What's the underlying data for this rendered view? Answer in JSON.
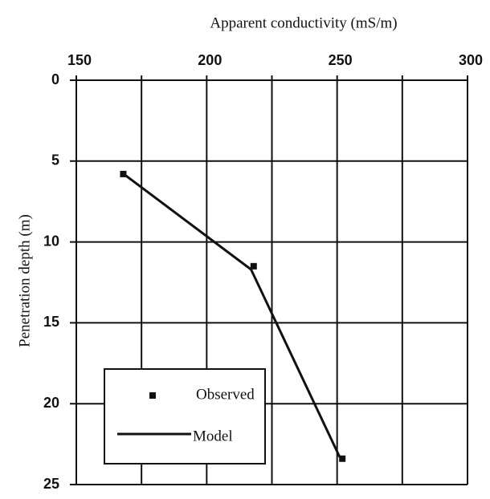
{
  "chart_data": {
    "type": "line",
    "title": "Apparent conductivity (mS/m)",
    "y_label": "Penetration depth (m)",
    "xlim": [
      150,
      300
    ],
    "xticks": [
      150,
      200,
      250,
      300
    ],
    "xminor_ticks": [
      175,
      225,
      275
    ],
    "ylim": [
      0,
      25
    ],
    "yticks": [
      0,
      5,
      10,
      15,
      20,
      25
    ],
    "y_inverted": true,
    "grid": true,
    "legend": "lower left",
    "series": [
      {
        "name": "Observed",
        "color": "#111111",
        "marker": "square",
        "x": [
          168,
          218,
          252
        ],
        "values": [
          5.8,
          11.5,
          23.4
        ]
      },
      {
        "name": "Model",
        "color": "#111111",
        "marker": "none",
        "x": [
          169,
          217,
          251
        ],
        "values": [
          5.9,
          11.7,
          23.3
        ]
      }
    ]
  }
}
